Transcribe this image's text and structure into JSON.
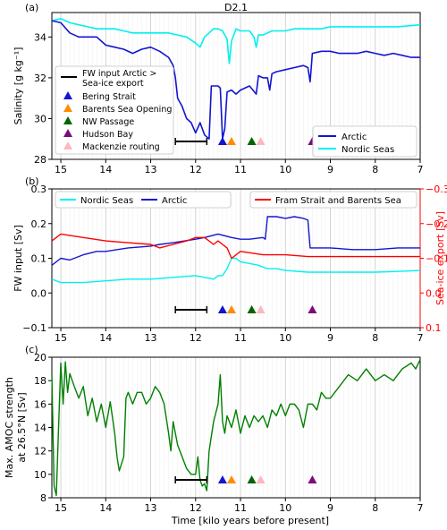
{
  "figure": {
    "title": "D2.1",
    "xlabel": "Time [kilo years before present]",
    "xlim": [
      15.2,
      7
    ],
    "xticks": [
      15,
      14,
      13,
      12,
      11,
      10,
      9,
      8,
      7
    ],
    "event_markers": {
      "bar": {
        "x": [
          12.45,
          11.75
        ]
      },
      "triangles": [
        {
          "name": "Bering Strait",
          "x": 11.4,
          "color": "#1414d2"
        },
        {
          "name": "Barents Sea Opening",
          "x": 11.2,
          "color": "#ff8c00"
        },
        {
          "name": "NW Passage",
          "x": 10.75,
          "color": "#006400"
        },
        {
          "name": "Hudson Bay",
          "x": 9.4,
          "color": "#7b0a7b"
        },
        {
          "name": "Mackenzie routing",
          "x": 10.55,
          "color": "#ffb6c1"
        }
      ]
    }
  },
  "panels": {
    "a": {
      "label": "(a)",
      "ylabel": "Salinity [g kg⁻¹]",
      "yticks": [
        "28",
        "30",
        "32",
        "34"
      ],
      "legend_left": {
        "bar_label_line1": "FW input Arctic >",
        "bar_label_line2": "Sea-ice export",
        "items": [
          "Bering Strait",
          "Barents Sea Opening",
          "NW Passage",
          "Hudson Bay",
          "Mackenzie routing"
        ]
      },
      "legend_right": [
        "Arctic",
        "Nordic Seas"
      ]
    },
    "b": {
      "label": "(b)",
      "ylabel": "FW input [Sv]",
      "ylabel_right": "Sea-ice export [Sv]",
      "yticks": [
        "−0.1",
        "0.0",
        "0.1",
        "0.2",
        "0.3"
      ],
      "yticks_right": [
        "−0.3",
        "−0.2",
        "−0.1",
        "0.0",
        "0.1"
      ],
      "legend_left": [
        "Nordic Seas",
        "Arctic"
      ],
      "legend_right": [
        "Fram Strait and Barents Sea"
      ]
    },
    "c": {
      "label": "(c)",
      "ylabel_line1": "Max. AMOC strength",
      "ylabel_line2": "at 26.5°N [Sv]",
      "yticks": [
        "8",
        "10",
        "12",
        "14",
        "16",
        "18",
        "20"
      ]
    }
  },
  "chart_data": [
    {
      "type": "line",
      "title": "D2.1",
      "xlabel": "Time [kilo years before present]",
      "ylabel": "Salinity [g kg⁻¹]",
      "xlim": [
        15.2,
        7
      ],
      "ylim": [
        28,
        35.2
      ],
      "grid": "vertical",
      "legend": "lower right",
      "series": [
        {
          "name": "Arctic",
          "color": "#1414d2",
          "x": [
            15.2,
            15.0,
            14.8,
            14.6,
            14.4,
            14.2,
            14.0,
            13.8,
            13.6,
            13.4,
            13.2,
            13.0,
            12.8,
            12.6,
            12.5,
            12.45,
            12.4,
            12.3,
            12.2,
            12.1,
            12.0,
            11.9,
            11.8,
            11.7,
            11.65,
            11.6,
            11.5,
            11.45,
            11.4,
            11.35,
            11.3,
            11.2,
            11.1,
            11.0,
            10.8,
            10.65,
            10.6,
            10.5,
            10.4,
            10.35,
            10.3,
            10.2,
            10.0,
            9.8,
            9.6,
            9.5,
            9.45,
            9.4,
            9.2,
            9.0,
            8.8,
            8.6,
            8.4,
            8.2,
            8.0,
            7.8,
            7.6,
            7.4,
            7.2,
            7.0
          ],
          "y": [
            34.8,
            34.7,
            34.2,
            34.0,
            34.0,
            34.0,
            33.6,
            33.5,
            33.4,
            33.2,
            33.4,
            33.5,
            33.3,
            33.0,
            32.6,
            32.0,
            31.0,
            30.6,
            30.0,
            29.8,
            29.3,
            29.8,
            29.2,
            29.0,
            31.6,
            31.6,
            31.6,
            31.5,
            29.0,
            29.5,
            31.3,
            31.4,
            31.2,
            31.4,
            31.6,
            31.2,
            32.1,
            32.0,
            32.0,
            31.4,
            32.2,
            32.3,
            32.4,
            32.5,
            32.6,
            32.5,
            31.8,
            33.2,
            33.3,
            33.3,
            33.2,
            33.2,
            33.2,
            33.3,
            33.2,
            33.1,
            33.2,
            33.1,
            33.0,
            33.0
          ]
        },
        {
          "name": "Nordic Seas",
          "color": "#00f0f0",
          "x": [
            15.2,
            15.0,
            14.8,
            14.6,
            14.4,
            14.2,
            14.0,
            13.8,
            13.6,
            13.4,
            13.2,
            13.0,
            12.8,
            12.6,
            12.4,
            12.2,
            12.0,
            11.9,
            11.8,
            11.7,
            11.6,
            11.5,
            11.4,
            11.3,
            11.25,
            11.2,
            11.15,
            11.1,
            11.0,
            10.8,
            10.7,
            10.65,
            10.6,
            10.5,
            10.4,
            10.3,
            10.0,
            9.8,
            9.6,
            9.4,
            9.2,
            9.0,
            8.5,
            8.0,
            7.5,
            7.0
          ],
          "y": [
            34.8,
            34.9,
            34.7,
            34.6,
            34.5,
            34.4,
            34.4,
            34.4,
            34.3,
            34.2,
            34.2,
            34.2,
            34.2,
            34.2,
            34.1,
            34.0,
            33.7,
            33.5,
            34.0,
            34.2,
            34.4,
            34.4,
            34.3,
            33.9,
            32.7,
            33.8,
            34.1,
            34.4,
            34.3,
            34.3,
            34.0,
            33.5,
            34.1,
            34.1,
            34.2,
            34.3,
            34.3,
            34.4,
            34.4,
            34.4,
            34.4,
            34.5,
            34.5,
            34.5,
            34.5,
            34.6
          ]
        }
      ]
    },
    {
      "type": "line",
      "xlabel": "Time [kilo years before present]",
      "ylabel": "FW input [Sv]",
      "ylabel_right": "Sea-ice export [Sv]",
      "xlim": [
        15.2,
        7
      ],
      "ylim": [
        -0.1,
        0.3
      ],
      "ylim_right": [
        0.1,
        -0.3
      ],
      "grid": "vertical",
      "series": [
        {
          "name": "Nordic Seas",
          "color": "#00f0f0",
          "axis": "left",
          "x": [
            15.2,
            15.0,
            14.5,
            14.0,
            13.5,
            13.0,
            12.5,
            12.0,
            11.6,
            11.5,
            11.4,
            11.3,
            11.2,
            11.1,
            11.0,
            10.8,
            10.6,
            10.4,
            10.2,
            10.0,
            9.5,
            9.0,
            8.5,
            8.0,
            7.5,
            7.0
          ],
          "y": [
            0.04,
            0.03,
            0.03,
            0.035,
            0.04,
            0.04,
            0.045,
            0.05,
            0.04,
            0.05,
            0.05,
            0.07,
            0.1,
            0.1,
            0.09,
            0.085,
            0.08,
            0.07,
            0.07,
            0.065,
            0.06,
            0.06,
            0.06,
            0.06,
            0.062,
            0.065
          ]
        },
        {
          "name": "Arctic",
          "color": "#1414d2",
          "axis": "left",
          "x": [
            15.2,
            15.0,
            14.8,
            14.5,
            14.2,
            14.0,
            13.5,
            13.0,
            12.8,
            12.5,
            12.0,
            11.8,
            11.5,
            11.2,
            11.0,
            10.8,
            10.5,
            10.45,
            10.4,
            10.2,
            10.0,
            9.8,
            9.6,
            9.5,
            9.45,
            9.4,
            9.0,
            8.5,
            8.0,
            7.5,
            7.0
          ],
          "y": [
            0.08,
            0.1,
            0.095,
            0.11,
            0.12,
            0.12,
            0.13,
            0.135,
            0.14,
            0.145,
            0.155,
            0.16,
            0.17,
            0.16,
            0.155,
            0.155,
            0.16,
            0.155,
            0.22,
            0.22,
            0.215,
            0.22,
            0.215,
            0.21,
            0.13,
            0.13,
            0.13,
            0.125,
            0.125,
            0.13,
            0.13
          ]
        },
        {
          "name": "Fram Strait and Barents Sea",
          "color": "#ff0000",
          "axis": "right",
          "x": [
            15.2,
            15.0,
            14.5,
            14.0,
            13.5,
            13.0,
            12.8,
            12.5,
            12.2,
            12.0,
            11.8,
            11.6,
            11.5,
            11.4,
            11.3,
            11.2,
            11.0,
            10.5,
            10.0,
            9.5,
            9.0,
            8.5,
            8.0,
            7.5,
            7.0
          ],
          "y": [
            -0.15,
            -0.17,
            -0.16,
            -0.15,
            -0.145,
            -0.14,
            -0.13,
            -0.14,
            -0.15,
            -0.16,
            -0.16,
            -0.14,
            -0.15,
            -0.14,
            -0.13,
            -0.1,
            -0.12,
            -0.11,
            -0.11,
            -0.105,
            -0.105,
            -0.105,
            -0.105,
            -0.105,
            -0.105
          ]
        }
      ]
    },
    {
      "type": "line",
      "xlabel": "Time [kilo years before present]",
      "ylabel": "Max. AMOC strength at 26.5°N [Sv]",
      "xlim": [
        15.2,
        7
      ],
      "ylim": [
        8,
        20
      ],
      "grid": "vertical",
      "series": [
        {
          "name": "AMOC",
          "color": "#008000",
          "x": [
            15.2,
            15.15,
            15.1,
            15.05,
            15.0,
            14.95,
            14.9,
            14.85,
            14.8,
            14.7,
            14.6,
            14.5,
            14.4,
            14.3,
            14.2,
            14.1,
            14.0,
            13.9,
            13.8,
            13.75,
            13.7,
            13.6,
            13.55,
            13.5,
            13.4,
            13.3,
            13.2,
            13.1,
            13.0,
            12.9,
            12.8,
            12.7,
            12.6,
            12.55,
            12.5,
            12.4,
            12.3,
            12.2,
            12.1,
            12.0,
            11.95,
            11.9,
            11.85,
            11.8,
            11.75,
            11.7,
            11.6,
            11.5,
            11.45,
            11.4,
            11.35,
            11.3,
            11.2,
            11.1,
            11.0,
            10.9,
            10.8,
            10.7,
            10.6,
            10.5,
            10.4,
            10.3,
            10.2,
            10.1,
            10.0,
            9.9,
            9.8,
            9.7,
            9.6,
            9.5,
            9.4,
            9.3,
            9.2,
            9.1,
            9.0,
            8.8,
            8.6,
            8.4,
            8.2,
            8.0,
            7.8,
            7.6,
            7.4,
            7.2,
            7.1,
            7.0
          ],
          "y": [
            18.5,
            9.0,
            8.2,
            14.0,
            19.5,
            16.0,
            19.6,
            17.0,
            18.6,
            17.5,
            16.5,
            17.5,
            15.0,
            16.5,
            14.5,
            16.0,
            14.0,
            16.2,
            13.5,
            11.5,
            10.3,
            11.5,
            16.5,
            17.0,
            16.0,
            17.0,
            17.0,
            16.0,
            16.5,
            17.5,
            17.0,
            16.0,
            13.5,
            12.0,
            14.5,
            12.5,
            11.5,
            10.5,
            10.0,
            10.0,
            11.5,
            9.5,
            9.0,
            9.2,
            8.6,
            12.0,
            14.5,
            16.0,
            18.5,
            14.5,
            13.5,
            15.0,
            14.0,
            15.5,
            13.5,
            15.0,
            14.0,
            15.0,
            14.5,
            15.0,
            14.0,
            15.5,
            15.0,
            16.0,
            15.0,
            16.0,
            16.0,
            15.5,
            14.0,
            16.0,
            16.0,
            15.5,
            17.0,
            16.5,
            16.5,
            17.5,
            18.5,
            18.0,
            19.0,
            18.0,
            18.5,
            18.0,
            19.0,
            19.5,
            19.0,
            19.8
          ]
        }
      ]
    }
  ]
}
